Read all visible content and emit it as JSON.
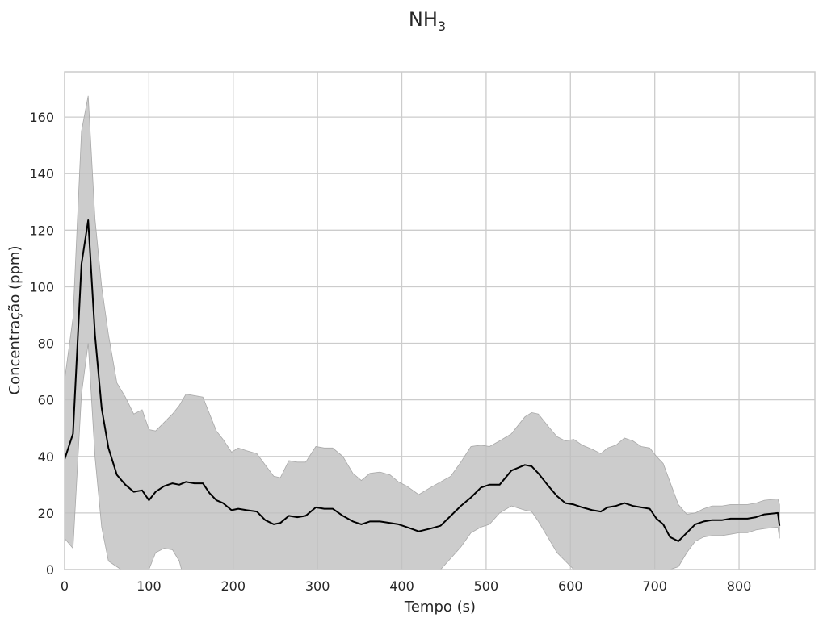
{
  "chart_data": {
    "type": "line",
    "title": "NH",
    "title_subscript": "3",
    "xlabel": "Tempo (s)",
    "ylabel": "Concentração (ppm)",
    "xlim": [
      0,
      890
    ],
    "ylim": [
      0,
      176
    ],
    "xticks": [
      0,
      100,
      200,
      300,
      400,
      500,
      600,
      700,
      800
    ],
    "yticks": [
      0,
      20,
      40,
      60,
      80,
      100,
      120,
      140,
      160
    ],
    "grid": true,
    "colors": {
      "line": "#000000",
      "band": "#bfbfbf",
      "grid": "#cccccc"
    },
    "series": [
      {
        "x": [
          0,
          10,
          20,
          28,
          36,
          44,
          52,
          62,
          72,
          82,
          92,
          100,
          108,
          118,
          128,
          136,
          144,
          154,
          164,
          172,
          180,
          188,
          198,
          206,
          216,
          228,
          238,
          248,
          256,
          266,
          276,
          286,
          298,
          308,
          318,
          330,
          342,
          352,
          362,
          374,
          386,
          396,
          406,
          420,
          434,
          446,
          458,
          470,
          482,
          494,
          504,
          516,
          530,
          546,
          554,
          562,
          574,
          584,
          594,
          604,
          614,
          626,
          636,
          644,
          654,
          664,
          674,
          684,
          694,
          702,
          710,
          718,
          728,
          738,
          748,
          758,
          768,
          780,
          790,
          800,
          810,
          820,
          830,
          846,
          848
        ],
        "y": [
          39,
          48,
          108,
          123.5,
          83,
          57,
          43,
          33.5,
          30,
          27.5,
          28,
          24.5,
          27.5,
          29.5,
          30.5,
          30,
          31,
          30.5,
          30.5,
          27,
          24.5,
          23.5,
          21,
          21.5,
          21,
          20.5,
          17.5,
          16,
          16.5,
          19,
          18.5,
          19,
          22,
          21.5,
          21.5,
          19,
          17,
          16,
          17,
          17,
          16.5,
          16,
          15,
          13.5,
          14.5,
          15.5,
          19,
          22.5,
          25.5,
          29,
          30,
          30,
          35,
          37,
          36.5,
          34,
          29.5,
          26,
          23.5,
          23,
          22,
          21,
          20.5,
          22,
          22.5,
          23.5,
          22.5,
          22,
          21.5,
          18,
          16,
          11.5,
          10,
          13,
          16,
          17,
          17.5,
          17.5,
          18,
          18,
          18,
          18.5,
          19.5,
          20,
          15.5
        ],
        "lower": [
          11,
          7.5,
          62,
          80,
          40,
          15,
          3,
          1,
          -1,
          -4,
          -3,
          0,
          6,
          7.5,
          7,
          3,
          -6,
          -8,
          -10,
          -12,
          -15,
          -18,
          -20,
          -20,
          -19,
          -22,
          -22,
          -21,
          -18,
          -16,
          -16,
          -15,
          -11,
          -14,
          -14,
          -18,
          -18,
          -19,
          -18,
          -16,
          -14,
          -12,
          -10,
          -6,
          -3,
          0,
          4,
          8,
          13,
          15,
          16,
          20,
          22.5,
          21,
          20.5,
          17,
          11,
          6,
          3,
          0,
          -2,
          -4,
          -5,
          -3,
          -2,
          -2,
          -5,
          -8,
          -5,
          -2,
          -1,
          0,
          1,
          6,
          10,
          11.5,
          12,
          12,
          12.5,
          13,
          13,
          14,
          14.5,
          15,
          11
        ],
        "upper": [
          67,
          89,
          155,
          167.5,
          124,
          100,
          83,
          66,
          61,
          55,
          56.5,
          49.5,
          49,
          52,
          55,
          58,
          62,
          61.5,
          61,
          55,
          49,
          46,
          41.5,
          43,
          42,
          41,
          37,
          33,
          32.5,
          38.5,
          38,
          38,
          43.5,
          43,
          43,
          40,
          34,
          31.5,
          34,
          34.5,
          33.5,
          31,
          29.5,
          26.5,
          29,
          31,
          33,
          38,
          43.5,
          44,
          43.5,
          45.5,
          48,
          54,
          55.5,
          55,
          50.5,
          47,
          45.5,
          46,
          44,
          42.5,
          41,
          43,
          44,
          46.5,
          45.5,
          43.5,
          43,
          40,
          37.5,
          31,
          23,
          19.5,
          20,
          21.5,
          22.5,
          22.5,
          23,
          23,
          23,
          23.5,
          24.5,
          25,
          23
        ]
      }
    ]
  }
}
